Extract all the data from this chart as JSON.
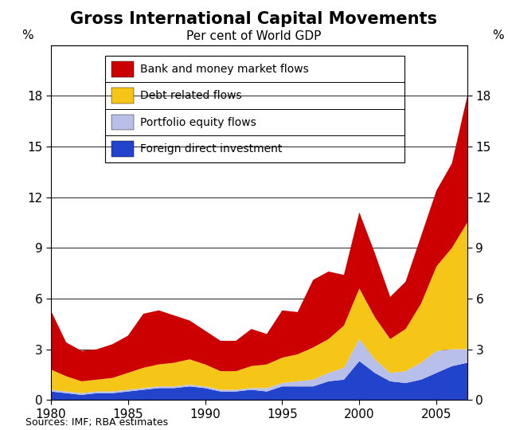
{
  "title": "Gross International Capital Movements",
  "subtitle": "Per cent of World GDP",
  "source": "Sources: IMF; RBA estimates",
  "years": [
    1980,
    1981,
    1982,
    1983,
    1984,
    1985,
    1986,
    1987,
    1988,
    1989,
    1990,
    1991,
    1992,
    1993,
    1994,
    1995,
    1996,
    1997,
    1998,
    1999,
    2000,
    2001,
    2002,
    2003,
    2004,
    2005,
    2006,
    2007
  ],
  "fdi": [
    0.5,
    0.4,
    0.3,
    0.4,
    0.4,
    0.5,
    0.6,
    0.7,
    0.7,
    0.8,
    0.7,
    0.5,
    0.5,
    0.6,
    0.5,
    0.8,
    0.8,
    0.8,
    1.1,
    1.2,
    2.3,
    1.6,
    1.1,
    1.0,
    1.2,
    1.6,
    2.0,
    2.2
  ],
  "portfolio_equity": [
    0.1,
    0.1,
    0.1,
    0.1,
    0.1,
    0.1,
    0.1,
    0.1,
    0.1,
    0.1,
    0.1,
    0.1,
    0.1,
    0.1,
    0.2,
    0.2,
    0.3,
    0.4,
    0.5,
    0.7,
    1.3,
    0.8,
    0.5,
    0.7,
    1.0,
    1.3,
    1.0,
    0.8
  ],
  "debt": [
    1.2,
    0.9,
    0.7,
    0.7,
    0.8,
    1.0,
    1.2,
    1.3,
    1.4,
    1.5,
    1.3,
    1.1,
    1.1,
    1.3,
    1.4,
    1.5,
    1.6,
    1.9,
    2.0,
    2.5,
    3.0,
    2.5,
    2.0,
    2.5,
    3.5,
    5.0,
    6.0,
    7.5
  ],
  "bank": [
    3.5,
    2.0,
    1.8,
    1.8,
    2.0,
    2.2,
    3.2,
    3.2,
    2.8,
    2.3,
    2.0,
    1.8,
    1.8,
    2.2,
    1.8,
    2.8,
    2.5,
    4.0,
    4.0,
    3.0,
    4.5,
    3.8,
    2.5,
    2.8,
    4.0,
    4.5,
    5.0,
    7.5
  ],
  "colors": {
    "bank": "#cc0000",
    "debt": "#f5c518",
    "portfolio_equity": "#b8bfe8",
    "fdi": "#2244cc"
  },
  "ylim": [
    0,
    21
  ],
  "yticks": [
    0,
    3,
    6,
    9,
    12,
    15,
    18
  ],
  "xlim_left": 1980,
  "xlim_right": 2007,
  "xticks": [
    1980,
    1985,
    1990,
    1995,
    2000,
    2005
  ]
}
